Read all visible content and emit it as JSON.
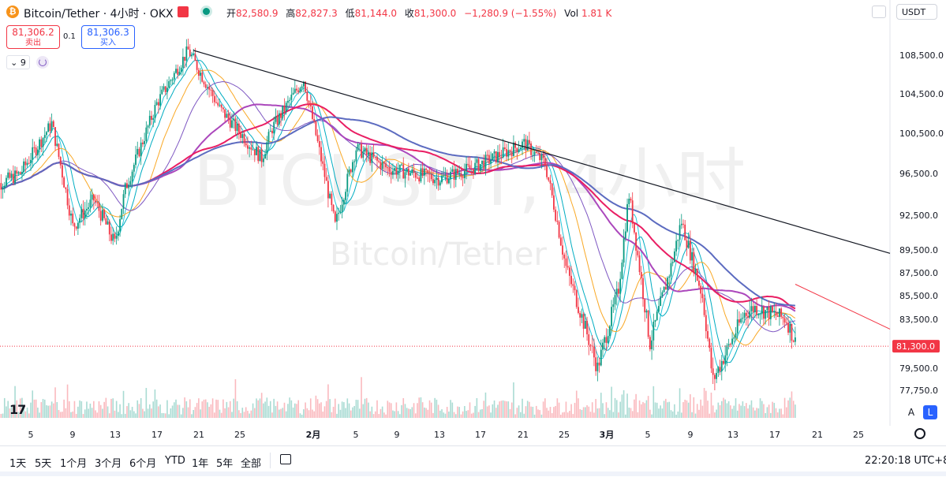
{
  "header": {
    "symbol_title": "Bitcoin/Tether · 4小时 · OKX",
    "logo_glyph": "₿",
    "ohlc": {
      "open_label": "开",
      "open": "82,580.9",
      "high_label": "高",
      "high": "82,827.3",
      "low_label": "低",
      "low": "81,144.0",
      "close_label": "收",
      "close": "81,300.0",
      "change": "−1,280.9 (−1.55%)",
      "vol_label": "Vol",
      "vol": "1.81 K"
    },
    "currency": "USDT",
    "change_color": "#f23645"
  },
  "trade": {
    "sell_price": "81,306.2",
    "sell_label": "卖出",
    "spread": "0.1",
    "buy_price": "81,306.3",
    "buy_label": "买入"
  },
  "indicators": {
    "count": "9"
  },
  "watermark": {
    "line1": "BTCUSDT, 4小时",
    "line2": "Bitcoin/Tether"
  },
  "price_axis": {
    "ticks": [
      "108,500.0",
      "104,500.0",
      "100,500.0",
      "96,500.0",
      "92,500.0",
      "89,500.0",
      "87,500.0",
      "85,500.0",
      "83,500.0",
      "79,500.0",
      "77,750.0"
    ],
    "tick_values": [
      108500,
      104500,
      100500,
      96500,
      92500,
      89500,
      87500,
      85500,
      83500,
      79500,
      77750
    ],
    "last_price_label": "81,300.0",
    "last_price": 81300,
    "last_price_color": "#f23645"
  },
  "time_axis": {
    "labels": [
      "5",
      "9",
      "13",
      "17",
      "21",
      "25",
      "2月",
      "5",
      "9",
      "13",
      "17",
      "21",
      "25",
      "3月",
      "5",
      "9",
      "13",
      "17",
      "21",
      "25"
    ]
  },
  "chart_data": {
    "type": "candlestick",
    "symbol": "BTCUSDT",
    "interval": "4小时",
    "exchange": "OKX",
    "y_range": [
      76000,
      110500
    ],
    "last_close": 81300,
    "key_points": [
      {
        "x": "~1月1日",
        "price": 95000
      },
      {
        "x": "1月7日",
        "price": 101500
      },
      {
        "x": "1月9日",
        "price": 91500
      },
      {
        "x": "1月13日",
        "price": 90000
      },
      {
        "x": "1月20日",
        "price": 109000
      },
      {
        "x": "1月27日",
        "price": 98000
      },
      {
        "x": "1月31日",
        "price": 106000
      },
      {
        "x": "2月3日",
        "price": 91500
      },
      {
        "x": "2月5日",
        "price": 99000
      },
      {
        "x": "2月13日",
        "price": 96000
      },
      {
        "x": "2月21日",
        "price": 99500
      },
      {
        "x": "2月25日",
        "price": 88000
      },
      {
        "x": "2月28日",
        "price": 79500
      },
      {
        "x": "3月2日",
        "price": 94500
      },
      {
        "x": "3月4日",
        "price": 81500
      },
      {
        "x": "3月7日",
        "price": 92000
      },
      {
        "x": "3月10日",
        "price": 78500
      },
      {
        "x": "3月14日",
        "price": 84500
      },
      {
        "x": "3月18日",
        "price": 81300
      }
    ],
    "trendline": {
      "from": {
        "x": "1月20日",
        "price": 109000
      },
      "to": {
        "x": "3月25日",
        "price": 89000
      }
    },
    "colors": {
      "up": "#089981",
      "down": "#f23645",
      "trendline": "#131722"
    }
  },
  "bottom": {
    "ranges": [
      "1天",
      "5天",
      "1个月",
      "3个月",
      "6个月",
      "YTD",
      "1年",
      "5年",
      "全部"
    ],
    "clock": "22:20:18 UTC+8",
    "scale_auto": "A",
    "scale_log": "L"
  }
}
